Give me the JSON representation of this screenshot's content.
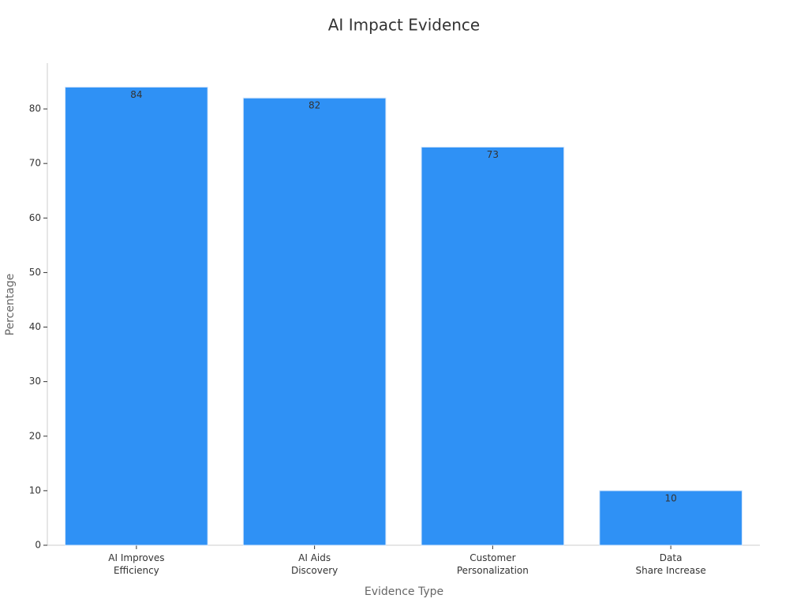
{
  "chart_data": {
    "type": "bar",
    "title": "AI Impact Evidence",
    "x_label": "Evidence Type",
    "y_label": "Percentage",
    "categories": [
      [
        "AI Improves",
        "Efficiency"
      ],
      [
        "AI Aids",
        "Discovery"
      ],
      [
        "Customer",
        "Personalization"
      ],
      [
        "Data",
        "Share Increase"
      ]
    ],
    "values": [
      84,
      82,
      73,
      10
    ],
    "color": "#2f91f5",
    "ylim": [
      0,
      88.4
    ],
    "yticks": [
      0,
      10,
      20,
      30,
      40,
      50,
      60,
      70,
      80
    ],
    "grid": false
  }
}
